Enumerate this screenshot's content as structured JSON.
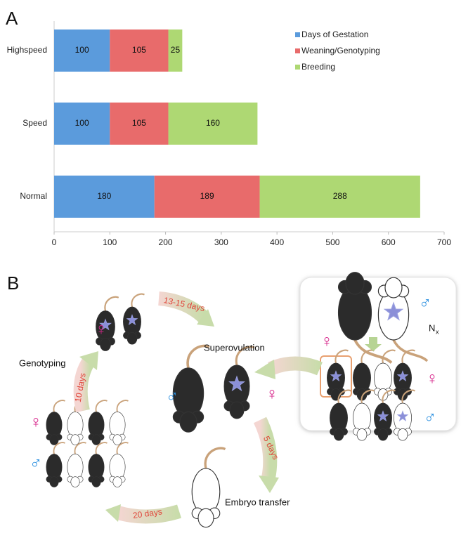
{
  "chart_data": {
    "type": "bar",
    "orientation": "horizontal",
    "stacked": true,
    "categories": [
      "Highspeed",
      "Speed",
      "Normal"
    ],
    "series": [
      {
        "name": "Days of Gestation",
        "color": "#5b9bdc",
        "values": [
          100,
          100,
          180
        ]
      },
      {
        "name": "Weaning/Genotyping",
        "color": "#e86b6b",
        "values": [
          105,
          105,
          189
        ]
      },
      {
        "name": "Breeding",
        "color": "#aed873",
        "values": [
          25,
          160,
          288
        ]
      }
    ],
    "xlim": [
      0,
      700
    ],
    "xticks": [
      0,
      100,
      200,
      300,
      400,
      500,
      600,
      700
    ],
    "legend": "upper right",
    "value_labels_shown": true
  },
  "panels": {
    "a": "A",
    "b": "B"
  },
  "diagram": {
    "female": "♀",
    "male": "♂",
    "arrow_13_15": "13-15 days",
    "superovulation": "Superovulation",
    "genotyping": "Genotyping",
    "arrow_10": "10 days",
    "arrow_5": "5 days",
    "embryo_transfer": "Embryo transfer",
    "arrow_20": "20 days",
    "backcross_n": "N",
    "backcross_sub": "x"
  }
}
